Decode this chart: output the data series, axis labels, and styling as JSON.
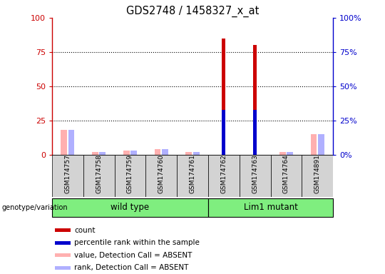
{
  "title": "GDS2748 / 1458327_x_at",
  "samples": [
    "GSM174757",
    "GSM174758",
    "GSM174759",
    "GSM174760",
    "GSM174761",
    "GSM174762",
    "GSM174763",
    "GSM174764",
    "GSM174891"
  ],
  "count_values": [
    0,
    0,
    0,
    0,
    0,
    85,
    80,
    0,
    0
  ],
  "percentile_values": [
    0,
    0,
    0,
    0,
    0,
    33,
    33,
    0,
    0
  ],
  "absent_value_values": [
    18,
    2,
    3,
    4,
    2,
    0,
    0,
    2,
    15
  ],
  "absent_rank_values": [
    18,
    2,
    3,
    4,
    2,
    0,
    0,
    2,
    15
  ],
  "count_color": "#cc0000",
  "percentile_color": "#0000cc",
  "absent_value_color": "#ffb0b0",
  "absent_rank_color": "#b0b0ff",
  "ylim": [
    0,
    100
  ],
  "yticks": [
    0,
    25,
    50,
    75,
    100
  ],
  "wild_type_count": 5,
  "lim1_count": 4,
  "group_label": "genotype/variation",
  "group_wt": "wild type",
  "group_lm": "Lim1 mutant",
  "group_color": "#7FEE7F",
  "sample_box_color": "#d3d3d3",
  "legend_items": [
    {
      "label": "count",
      "color": "#cc0000"
    },
    {
      "label": "percentile rank within the sample",
      "color": "#0000cc"
    },
    {
      "label": "value, Detection Call = ABSENT",
      "color": "#ffb0b0"
    },
    {
      "label": "rank, Detection Call = ABSENT",
      "color": "#b0b0ff"
    }
  ]
}
